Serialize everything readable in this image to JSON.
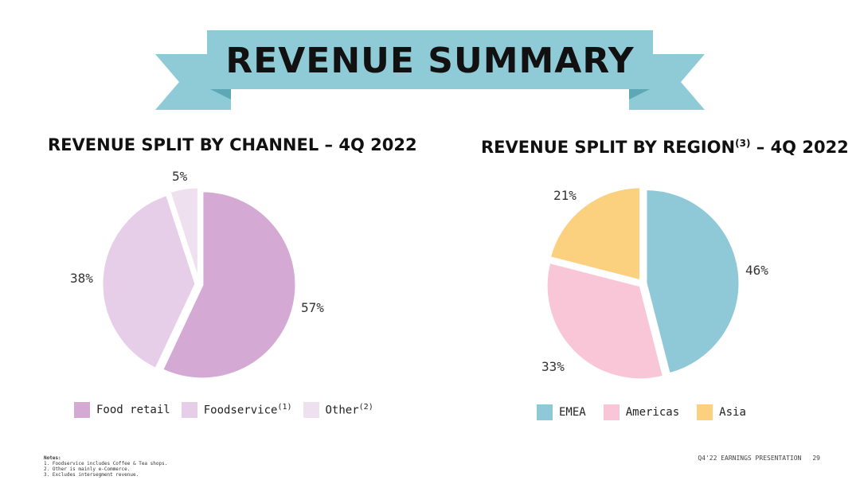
{
  "title": "REVENUE SUMMARY",
  "colors": {
    "banner": "#8ecbd6",
    "food_retail": "#d4a9d3",
    "foodservice": "#e6cde8",
    "other": "#efe0f0",
    "emea": "#8fc8d6",
    "americas": "#f9c6d8",
    "asia": "#fbd17f"
  },
  "chart_data": [
    {
      "type": "pie",
      "title": "REVENUE SPLIT BY CHANNEL – 4Q 2022",
      "labels": [
        "Food retail",
        "Foodservice",
        "Other"
      ],
      "label_sup": [
        "",
        "(1)",
        "(2)"
      ],
      "values": [
        57,
        38,
        5
      ],
      "value_labels": [
        "57%",
        "38%",
        "5%"
      ],
      "colors": [
        "#d4a9d3",
        "#e6cde8",
        "#efe0f0"
      ]
    },
    {
      "type": "pie",
      "title": "REVENUE SPLIT BY REGION",
      "title_sup": "(3)",
      "title_suffix": " – 4Q 2022",
      "labels": [
        "EMEA",
        "Americas",
        "Asia"
      ],
      "values": [
        46,
        33,
        21
      ],
      "value_labels": [
        "46%",
        "33%",
        "21%"
      ],
      "colors": [
        "#8fc8d6",
        "#f9c6d8",
        "#fbd17f"
      ]
    }
  ],
  "notes": {
    "heading": "Notes:",
    "items": [
      "1. Foodservice includes Coffee & Tea shops.",
      "2. Other is mainly e-Commerce.",
      "3. Excludes intersegment revenue."
    ]
  },
  "footer": {
    "label": "Q4'22 EARNINGS PRESENTATION",
    "page": "29"
  }
}
